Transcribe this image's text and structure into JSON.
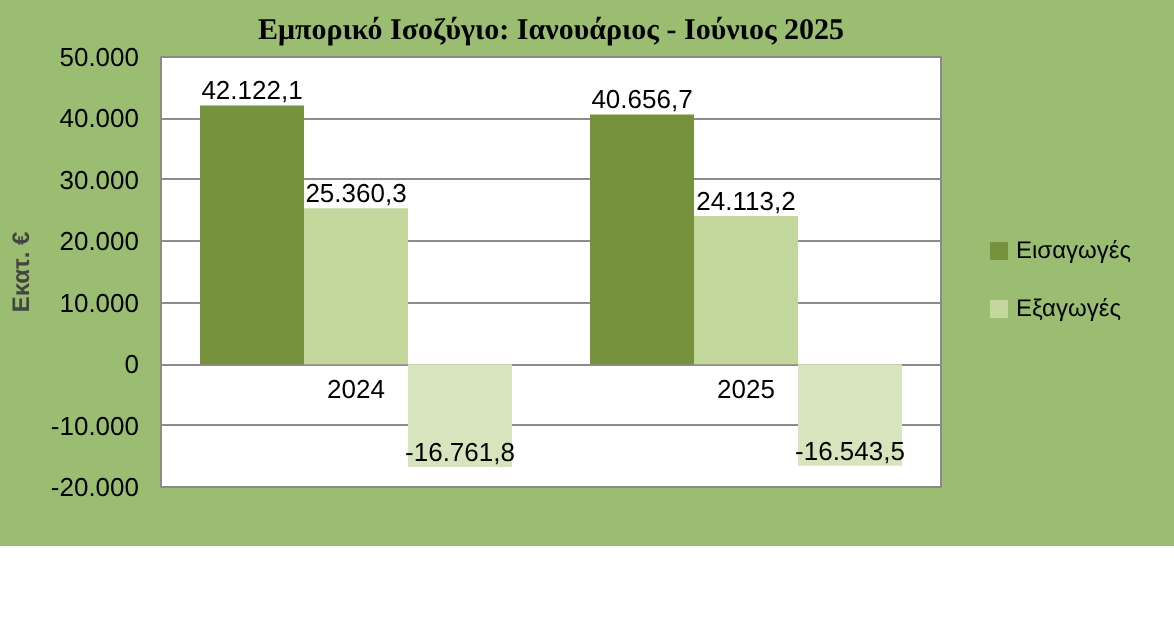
{
  "chart_data": {
    "type": "bar",
    "title": "Εμπορικό Ισοζύγιο: Ιανουάριος - Ιούνιος 2025",
    "ylabel": "Εκατ. €",
    "categories": [
      "2024",
      "2025"
    ],
    "series": [
      {
        "name": "Εισαγωγές",
        "color": "#76923c",
        "values": [
          42122.1,
          40656.7
        ],
        "value_labels": [
          "42.122,1",
          "40.656,7"
        ]
      },
      {
        "name": "Εξαγωγές",
        "color": "#c3d69b",
        "values": [
          25360.3,
          24113.2
        ],
        "value_labels": [
          "25.360,3",
          "24.113,2"
        ]
      },
      {
        "color": "#d7e4bd",
        "values": [
          -16761.8,
          -16543.5
        ],
        "value_labels": [
          "-16.761,8",
          "-16.543,5"
        ]
      }
    ],
    "ylim": [
      -20000,
      50000
    ],
    "yticks": [
      {
        "value": -20000,
        "label": "-20.000"
      },
      {
        "value": -10000,
        "label": "-10.000"
      },
      0,
      {
        "value": 10000,
        "label": "10.000"
      },
      {
        "value": 20000,
        "label": "20.000"
      },
      {
        "value": 30000,
        "label": "30.000"
      },
      {
        "value": 40000,
        "label": "40.000"
      },
      {
        "value": 50000,
        "label": "50.000"
      }
    ],
    "grid": "y",
    "legend": "right"
  }
}
